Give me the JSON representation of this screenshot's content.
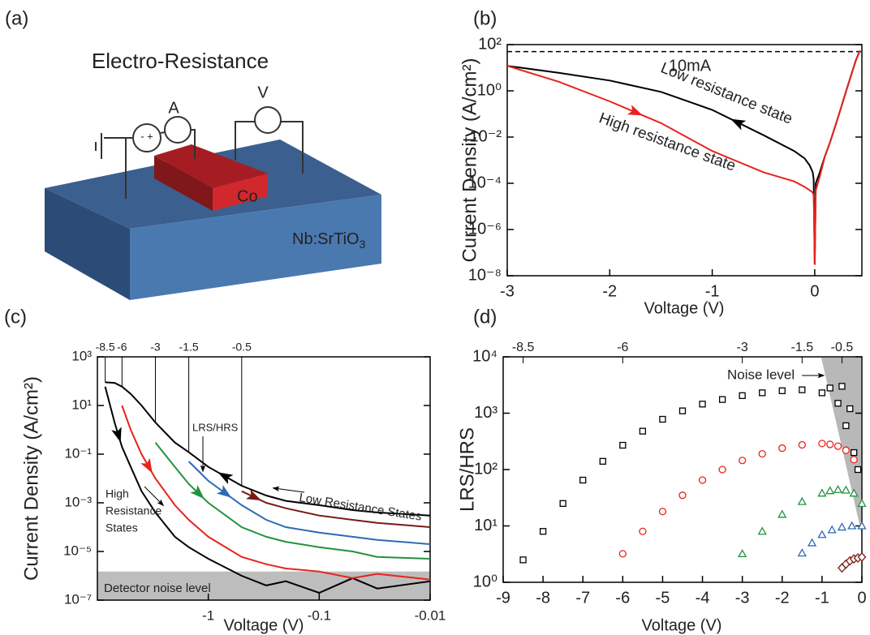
{
  "panel_labels": [
    "(a)",
    "(b)",
    "(c)",
    "(d)"
  ],
  "diagram": {
    "title": "Electro-Resistance",
    "ammeter": "A",
    "voltmeter": "V",
    "source": "- +",
    "electrode": "Co",
    "substrate": "Nb:SrTiO",
    "substrate_subscript": "3"
  },
  "chart_data": [
    {
      "type": "line",
      "xlabel": "Voltage (V)",
      "ylabel": "Current Density (A/cm²)",
      "yscale": "log",
      "xlim": [
        -3,
        0.46
      ],
      "xticks": [
        -3,
        -2,
        -1,
        0
      ],
      "ylim": [
        1e-08,
        100
      ],
      "yticks": [
        {
          "value": 1e-08,
          "label": "10⁻⁸"
        },
        {
          "value": 1e-06,
          "label": "10⁻⁶"
        },
        {
          "value": 0.0001,
          "label": "10⁻⁴"
        },
        {
          "value": 0.01,
          "label": "10⁻²"
        },
        {
          "value": 1,
          "label": "10⁰"
        },
        {
          "value": 100,
          "label": "10²"
        }
      ],
      "reference_line": 50,
      "annotations": [
        "10mA",
        "Low resistance state",
        "High resistance state"
      ],
      "x": [
        -3,
        -2.5,
        -2,
        -1.5,
        -1,
        -0.5,
        -0.2,
        -0.1,
        -0.05,
        -0.02,
        -0.01,
        0,
        0.01,
        0.05,
        0.1,
        0.15,
        0.2,
        0.25,
        0.3,
        0.35,
        0.4,
        0.44
      ],
      "series": [
        {
          "color": "#000000",
          "values": [
            12,
            6,
            2.8,
            0.9,
            0.15,
            0.012,
            0.0025,
            0.0012,
            0.0006,
            0.0003,
            0.00015,
            3e-08,
            0.0001,
            0.0003,
            0.0015,
            0.006,
            0.03,
            0.15,
            0.8,
            4,
            20,
            55
          ]
        },
        {
          "color": "#e8221c",
          "values": [
            12,
            2.5,
            0.35,
            0.04,
            0.0025,
            0.0003,
            0.00012,
            7e-05,
            5e-05,
            4e-05,
            3e-05,
            3e-08,
            5e-05,
            0.0002,
            0.0015,
            0.006,
            0.03,
            0.15,
            0.8,
            4,
            20,
            55
          ]
        }
      ]
    },
    {
      "type": "line",
      "xlabel": "Voltage (V)",
      "ylabel": "Current Density (A/cm²)",
      "yscale": "log",
      "xscale": "log",
      "xlim": [
        -10,
        -0.01
      ],
      "xticks": [
        -1,
        -0.1,
        -0.01
      ],
      "x2ticks": [
        -8.5,
        -6,
        -3,
        -1.5,
        -0.5
      ],
      "ylim": [
        1e-07,
        1000
      ],
      "yticks": [
        {
          "value": 1e-07,
          "label": "10⁻⁷"
        },
        {
          "value": 1e-05,
          "label": "10⁻⁵"
        },
        {
          "value": 0.001,
          "label": "10⁻³"
        },
        {
          "value": 0.1,
          "label": "10⁻¹"
        },
        {
          "value": 10,
          "label": "10¹"
        },
        {
          "value": 1000,
          "label": "10³"
        }
      ],
      "noise_floor": 1.5e-06,
      "noise_color": "#bdbdbd",
      "annotations": [
        "LRS/HRS",
        "High",
        "Resistance",
        "States",
        "Low Resistance States",
        "Detector noise level"
      ],
      "x": [
        -8.5,
        -7,
        -6,
        -5,
        -4,
        -3,
        -2,
        -1.5,
        -1,
        -0.5,
        -0.3,
        -0.2,
        -0.1,
        -0.05,
        -0.03,
        -0.01
      ],
      "series": [
        {
          "color": "#000000",
          "values": [
            90,
            85,
            60,
            30,
            10,
            2,
            0.3,
            0.12,
            0.03,
            0.005,
            0.002,
            0.0012,
            0.0008,
            0.0005,
            0.0004,
            0.0003
          ]
        },
        {
          "color": "#000000",
          "values": [
            60,
            2,
            0.2,
            0.03,
            0.003,
            0.0004,
            4e-05,
            1.5e-05,
            5e-06,
            1e-06,
            4e-07,
            6e-07,
            2e-07,
            8e-07,
            3e-07,
            6e-07
          ]
        },
        {
          "color": "#e8231c",
          "values": [
            null,
            null,
            10,
            1,
            0.1,
            0.01,
            0.0008,
            0.0002,
            4e-05,
            6e-06,
            3e-06,
            2e-06,
            1.5e-06,
            8e-07,
            1.2e-06,
            7e-07
          ]
        },
        {
          "color": "#23923d",
          "values": [
            null,
            null,
            null,
            null,
            null,
            0.3,
            0.03,
            0.006,
            0.001,
            0.0001,
            4e-05,
            2.5e-05,
            1.5e-05,
            1e-05,
            6e-06,
            5e-06
          ]
        },
        {
          "color": "#2e6ab5",
          "values": [
            null,
            null,
            null,
            null,
            null,
            null,
            null,
            0.05,
            0.008,
            0.0008,
            0.0002,
            0.0001,
            6e-05,
            4e-05,
            3e-05,
            2e-05
          ]
        },
        {
          "color": "#7a1a14",
          "values": [
            null,
            null,
            null,
            null,
            null,
            null,
            null,
            null,
            null,
            0.003,
            0.001,
            0.0006,
            0.0003,
            0.0002,
            0.00015,
            0.0001
          ]
        }
      ]
    },
    {
      "type": "scatter",
      "xlabel": "Voltage (V)",
      "ylabel": "LRS/HRS",
      "yscale": "log",
      "xlim": [
        -9,
        0
      ],
      "xticks": [
        -9,
        -8,
        -7,
        -6,
        -5,
        -4,
        -3,
        -2,
        -1,
        0
      ],
      "x2ticks": [
        -8.5,
        -6,
        -3,
        -1.5,
        -0.5
      ],
      "ylim": [
        1,
        10000
      ],
      "yticks": [
        {
          "value": 1,
          "label": "10⁰"
        },
        {
          "value": 10,
          "label": "10¹"
        },
        {
          "value": 100,
          "label": "10²"
        },
        {
          "value": 1000,
          "label": "10³"
        },
        {
          "value": 10000,
          "label": "10⁴"
        }
      ],
      "annotations": [
        "Noise level"
      ],
      "series": [
        {
          "color": "#000000",
          "marker": "square",
          "x": [
            -8.5,
            -8,
            -7.5,
            -7,
            -6.5,
            -6,
            -5.5,
            -5,
            -4.5,
            -4,
            -3.5,
            -3,
            -2.5,
            -2,
            -1.5,
            -1,
            -0.8,
            -0.6,
            -0.5,
            -0.4,
            -0.3,
            -0.2,
            -0.1
          ],
          "values": [
            2.5,
            8,
            25,
            65,
            140,
            270,
            480,
            780,
            1100,
            1450,
            1750,
            2050,
            2300,
            2500,
            2600,
            2300,
            2800,
            1500,
            3000,
            600,
            1200,
            200,
            100
          ]
        },
        {
          "color": "#e8231c",
          "marker": "circle",
          "x": [
            -6,
            -5.5,
            -5,
            -4.5,
            -4,
            -3.5,
            -3,
            -2.5,
            -2,
            -1.5,
            -1,
            -0.8,
            -0.6,
            -0.4,
            -0.2
          ],
          "values": [
            3.2,
            8,
            18,
            35,
            65,
            100,
            145,
            190,
            240,
            275,
            290,
            280,
            260,
            220,
            150
          ]
        },
        {
          "color": "#23923d",
          "marker": "triangle",
          "x": [
            -3,
            -2.5,
            -2,
            -1.5,
            -1,
            -0.8,
            -0.6,
            -0.4,
            -0.2,
            0
          ],
          "values": [
            3.2,
            8,
            16,
            27,
            38,
            42,
            44,
            43,
            38,
            25
          ]
        },
        {
          "color": "#2e6ab5",
          "marker": "triangle",
          "x": [
            -1.5,
            -1.25,
            -1,
            -0.75,
            -0.5,
            -0.25,
            0
          ],
          "values": [
            3.3,
            5,
            7,
            8.5,
            9.5,
            10,
            10
          ]
        },
        {
          "color": "#7a1a14",
          "marker": "diamond",
          "x": [
            -0.5,
            -0.4,
            -0.3,
            -0.2,
            -0.1,
            0
          ],
          "values": [
            1.8,
            2.1,
            2.4,
            2.6,
            2.7,
            2.8
          ]
        }
      ]
    }
  ]
}
